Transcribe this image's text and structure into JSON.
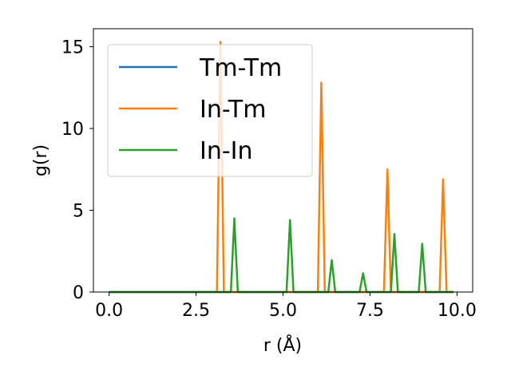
{
  "chart_data": {
    "type": "line",
    "title": "",
    "xlabel": "r (Å)",
    "ylabel": "g(r)",
    "xlim": [
      -0.45,
      10.45
    ],
    "ylim": [
      0,
      16.1
    ],
    "xticks": [
      0.0,
      2.5,
      5.0,
      7.5,
      10.0
    ],
    "xtick_labels": [
      "0.0",
      "2.5",
      "5.0",
      "7.5",
      "10.0"
    ],
    "yticks": [
      0,
      5,
      10,
      15
    ],
    "ytick_labels": [
      "0",
      "5",
      "10",
      "15"
    ],
    "grid": false,
    "legend_position": "top-left",
    "series": [
      {
        "name": "Tm-Tm",
        "color": "#1f77b4",
        "x": [
          0.0,
          9.9
        ],
        "y": [
          0.0,
          0.0
        ]
      },
      {
        "name": "In-Tm",
        "color": "#ff7f0e",
        "x": [
          0.0,
          3.1,
          3.2,
          3.3,
          6.0,
          6.1,
          6.2,
          7.9,
          8.0,
          8.1,
          9.5,
          9.6,
          9.7,
          9.9
        ],
        "y": [
          0.0,
          0.0,
          15.3,
          0.0,
          0.0,
          12.8,
          0.0,
          0.0,
          7.5,
          0.0,
          0.0,
          6.9,
          0.0,
          0.0
        ]
      },
      {
        "name": "In-In",
        "color": "#2ca02c",
        "x": [
          0.0,
          3.5,
          3.6,
          3.7,
          5.1,
          5.2,
          5.3,
          6.3,
          6.4,
          6.5,
          7.2,
          7.3,
          7.4,
          8.1,
          8.2,
          8.3,
          8.9,
          9.0,
          9.1,
          9.9
        ],
        "y": [
          0.0,
          0.0,
          4.5,
          0.0,
          0.0,
          4.4,
          0.0,
          0.0,
          1.95,
          0.0,
          0.0,
          1.15,
          0.0,
          0.0,
          3.55,
          0.0,
          0.0,
          2.95,
          0.0,
          0.0
        ]
      }
    ]
  }
}
